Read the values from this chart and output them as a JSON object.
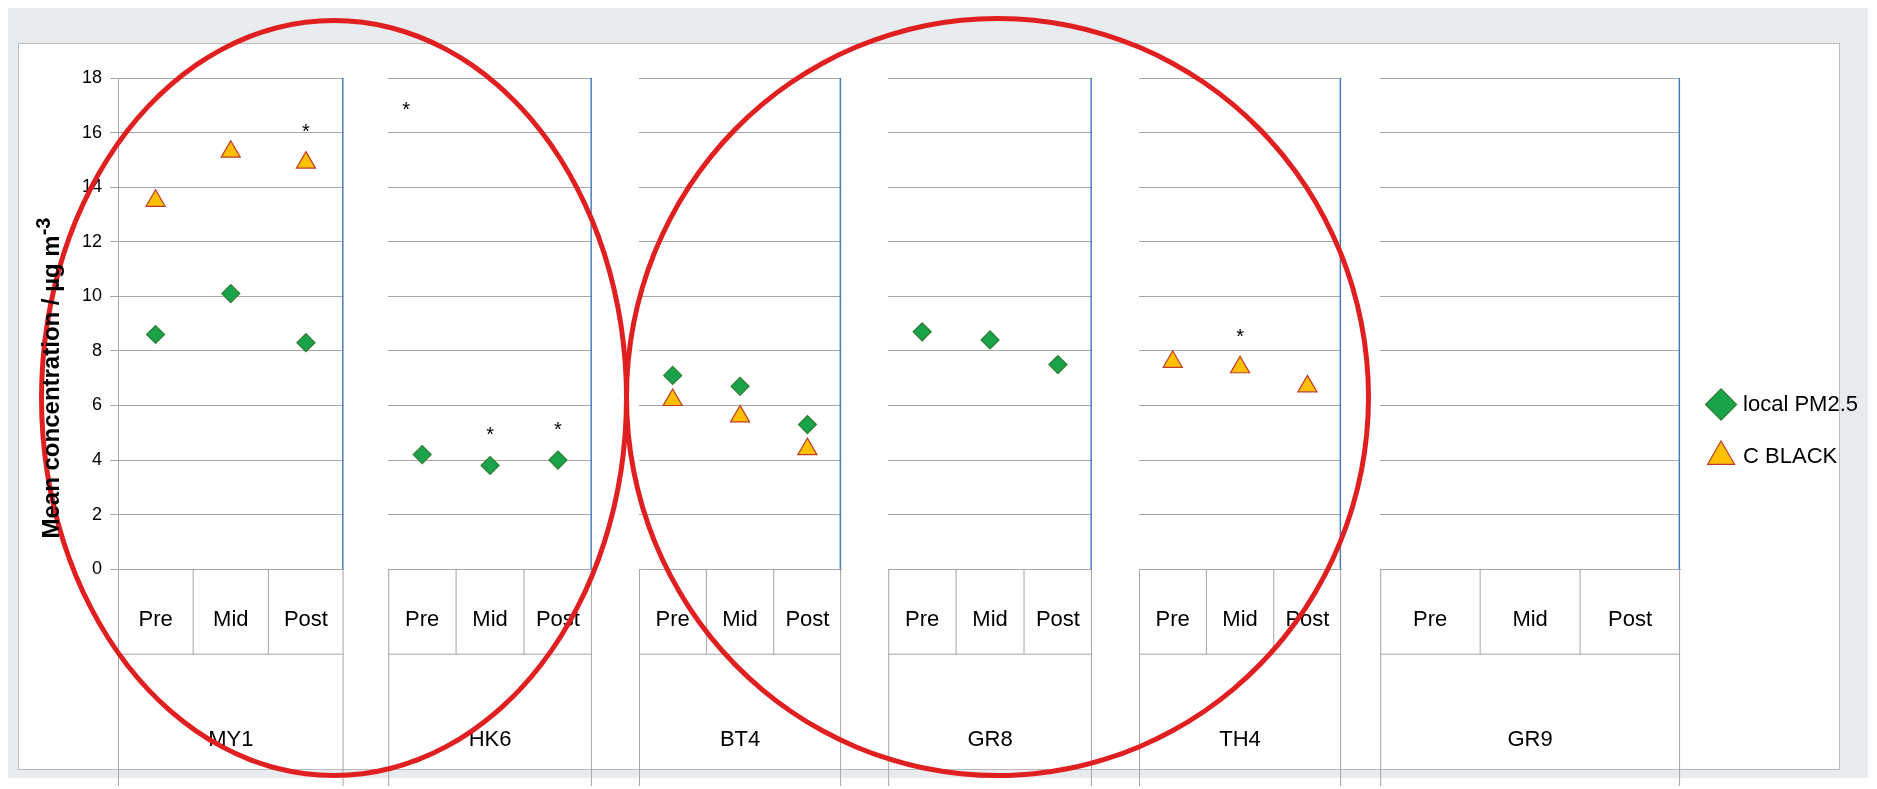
{
  "chart_data": [
    {
      "type": "scatter",
      "ylabel": "Mean concentration / µg m$^{-3}$",
      "xlabel": "MY1",
      "categories": [
        "Pre",
        "Mid",
        "Post"
      ],
      "series": [
        {
          "color": "#1aa34a",
          "marker": "diamond",
          "values": [
            8.6,
            10.1,
            8.3
          ]
        },
        {
          "color": "#ffc000",
          "marker": "triangle",
          "values": [
            13.5,
            15.3,
            14.9
          ]
        }
      ],
      "ylim": [
        0,
        18
      ],
      "yticks": [
        0,
        2,
        4,
        6,
        8,
        10,
        12,
        14,
        16,
        18
      ],
      "grid": "y",
      "legend": false,
      "annotations": [
        {
          "text": "*",
          "x": "Post",
          "y": 14.9
        }
      ]
    },
    {
      "type": "scatter",
      "xlabel": "HK6",
      "categories": [
        "Pre",
        "Mid",
        "Post"
      ],
      "series": [
        {
          "color": "#1aa34a",
          "marker": "diamond",
          "values": [
            4.2,
            3.8,
            4.0
          ]
        }
      ],
      "ylim": [
        0,
        18
      ],
      "yticks": [
        0,
        2,
        4,
        6,
        8,
        10,
        12,
        14,
        16,
        18
      ],
      "grid": "y",
      "legend": false,
      "tick_labels": "x",
      "annotations": [
        "*",
        {
          "text": "*",
          "x": "Mid",
          "y": 3.8
        },
        {
          "text": "*",
          "x": "Post",
          "y": 4.0
        }
      ]
    },
    {
      "type": "scatter",
      "xlabel": "BT4",
      "categories": [
        "Pre",
        "Mid",
        "Post"
      ],
      "series": [
        {
          "color": "#1aa34a",
          "marker": "diamond",
          "values": [
            7.1,
            6.7,
            5.3
          ]
        },
        {
          "color": "#ffc000",
          "marker": "triangle",
          "values": [
            6.2,
            5.6,
            4.4
          ]
        }
      ],
      "ylim": [
        0,
        18
      ],
      "yticks": [
        0,
        2,
        4,
        6,
        8,
        10,
        12,
        14,
        16,
        18
      ],
      "grid": "y",
      "legend": false,
      "tick_labels": "x"
    },
    {
      "type": "scatter",
      "xlabel": "GR8",
      "categories": [
        "Pre",
        "Mid",
        "Post"
      ],
      "series": [
        {
          "color": "#1aa34a",
          "marker": "diamond",
          "values": [
            8.7,
            8.4,
            7.5
          ]
        }
      ],
      "ylim": [
        0,
        18
      ],
      "yticks": [
        0,
        2,
        4,
        6,
        8,
        10,
        12,
        14,
        16,
        18
      ],
      "grid": "y",
      "legend": false,
      "tick_labels": "x"
    },
    {
      "type": "scatter",
      "xlabel": "TH4",
      "categories": [
        "Pre",
        "Mid",
        "Post"
      ],
      "series": [
        {
          "color": "#ffc000",
          "marker": "triangle",
          "values": [
            7.6,
            7.4,
            6.7
          ]
        }
      ],
      "ylim": [
        0,
        18
      ],
      "yticks": [
        0,
        2,
        4,
        6,
        8,
        10,
        12,
        14,
        16,
        18
      ],
      "grid": "y",
      "legend": false,
      "tick_labels": "x",
      "annotations": [
        {
          "text": "*",
          "x": "Mid",
          "y": 7.4
        }
      ]
    },
    {
      "type": "scatter",
      "xlabel": "GR9",
      "categories": [
        "Pre",
        "Mid",
        "Post"
      ],
      "series": [
        {
          "name": "local PM2.5",
          "color": "#1aa34a",
          "marker": "diamond",
          "values": [
            null,
            null,
            null
          ]
        },
        {
          "name": "C BLACK",
          "color": "#ffc000",
          "marker": "triangle",
          "values": [
            null,
            null,
            null
          ]
        }
      ],
      "ylim": [
        0,
        18
      ],
      "yticks": [
        0,
        2,
        4,
        6,
        8,
        10,
        12,
        14,
        16,
        18
      ],
      "grid": "y",
      "legend": "right",
      "tick_labels": "x"
    }
  ]
}
